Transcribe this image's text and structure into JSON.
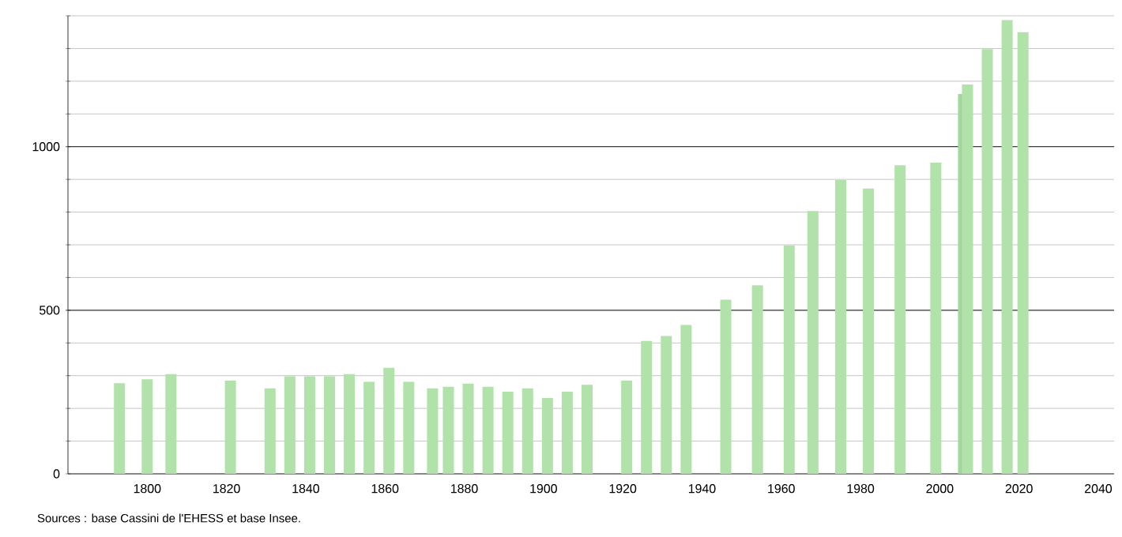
{
  "chart_data": {
    "type": "bar",
    "x": [
      1793,
      1800,
      1806,
      1821,
      1831,
      1836,
      1841,
      1846,
      1851,
      1856,
      1861,
      1866,
      1872,
      1876,
      1881,
      1886,
      1891,
      1896,
      1901,
      1906,
      1911,
      1921,
      1926,
      1931,
      1936,
      1946,
      1954,
      1962,
      1968,
      1975,
      1982,
      1990,
      1999,
      2006,
      2007,
      2012,
      2017,
      2021
    ],
    "values": [
      277,
      289,
      305,
      285,
      261,
      298,
      298,
      298,
      305,
      281,
      324,
      281,
      261,
      266,
      276,
      266,
      251,
      261,
      232,
      251,
      272,
      285,
      406,
      421,
      455,
      532,
      576,
      698,
      803,
      898,
      872,
      943,
      951,
      1161,
      1190,
      1298,
      1387,
      1350
    ],
    "colors": [
      "#b0e2aa",
      "#b0e2aa",
      "#b0e2aa",
      "#b0e2aa",
      "#b0e2aa",
      "#b0e2aa",
      "#b0e2aa",
      "#b0e2aa",
      "#b0e2aa",
      "#b0e2aa",
      "#b0e2aa",
      "#b0e2aa",
      "#b0e2aa",
      "#b0e2aa",
      "#b0e2aa",
      "#b0e2aa",
      "#b0e2aa",
      "#b0e2aa",
      "#b0e2aa",
      "#b0e2aa",
      "#b0e2aa",
      "#b0e2aa",
      "#b0e2aa",
      "#b0e2aa",
      "#b0e2aa",
      "#b0e2aa",
      "#b0e2aa",
      "#b0e2aa",
      "#b0e2aa",
      "#b0e2aa",
      "#b0e2aa",
      "#b0e2aa",
      "#b0e2aa",
      "#a2d89b",
      "#b0e2aa",
      "#b0e2aa",
      "#b0e2aa",
      "#b0e2aa"
    ],
    "xlim": [
      1780,
      2044
    ],
    "ylim": [
      0,
      1400
    ],
    "xticks": [
      1800,
      1820,
      1840,
      1860,
      1880,
      1900,
      1920,
      1940,
      1960,
      1980,
      2000,
      2020,
      2040
    ],
    "yticks": [
      0,
      {
        "value": 100,
        "label": null
      },
      {
        "value": 200,
        "label": null
      },
      {
        "value": 300,
        "label": null
      },
      {
        "value": 400,
        "label": null
      },
      500,
      {
        "value": 600,
        "label": null
      },
      {
        "value": 700,
        "label": null
      },
      {
        "value": 800,
        "label": null
      },
      {
        "value": 900,
        "label": null
      },
      1000,
      {
        "value": 1100,
        "label": null
      },
      {
        "value": 1200,
        "label": null
      },
      {
        "value": 1300,
        "label": null
      },
      {
        "value": 1400,
        "label": null
      }
    ],
    "grid": "y",
    "annotations": [
      "Sources : base Cassini de l'EHESS et base Insee."
    ]
  }
}
